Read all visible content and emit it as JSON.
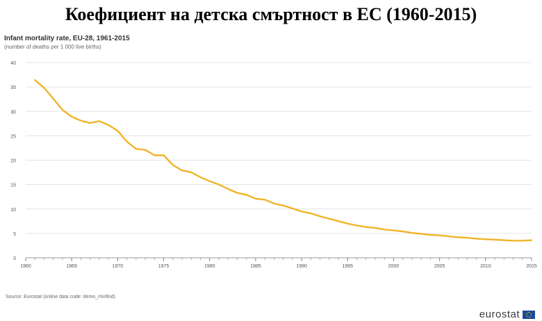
{
  "header": {
    "title": "Коефициент на детска смъртност в ЕС (1960-2015)"
  },
  "chart_data": {
    "type": "line",
    "title": "Infant mortality rate, EU-28, 1961-2015",
    "subtitle": "(number of deaths per 1 000 live births)",
    "xlabel": "",
    "ylabel": "",
    "xlim": [
      1960,
      2015
    ],
    "ylim": [
      0,
      40
    ],
    "x_ticks": [
      1960,
      1965,
      1970,
      1975,
      1980,
      1985,
      1990,
      1995,
      2000,
      2005,
      2010,
      2015
    ],
    "y_ticks": [
      0,
      5,
      10,
      15,
      20,
      25,
      30,
      35,
      40
    ],
    "grid": true,
    "color": "#f0b429",
    "series": [
      {
        "x": [
          1961,
          1962,
          1963,
          1964,
          1965,
          1966,
          1967,
          1968,
          1969,
          1970,
          1971,
          1972,
          1973,
          1974,
          1975,
          1976,
          1977,
          1978,
          1979,
          1980,
          1981,
          1982,
          1983,
          1984,
          1985,
          1986,
          1987,
          1988,
          1989,
          1990,
          1991,
          1992,
          1993,
          1994,
          1995,
          1996,
          1997,
          1998,
          1999,
          2000,
          2001,
          2002,
          2003,
          2004,
          2005,
          2006,
          2007,
          2008,
          2009,
          2010,
          2011,
          2012,
          2013,
          2014,
          2015
        ],
        "values": [
          36.4,
          34.8,
          32.6,
          30.3,
          28.9,
          28.1,
          27.6,
          28.0,
          27.2,
          26.0,
          23.8,
          22.3,
          22.1,
          21.0,
          21.0,
          19.0,
          17.9,
          17.5,
          16.5,
          15.7,
          15.0,
          14.1,
          13.3,
          12.9,
          12.1,
          11.9,
          11.1,
          10.7,
          10.1,
          9.5,
          9.1,
          8.5,
          8.0,
          7.5,
          7.0,
          6.6,
          6.3,
          6.1,
          5.8,
          5.6,
          5.4,
          5.1,
          4.9,
          4.7,
          4.6,
          4.4,
          4.2,
          4.1,
          3.9,
          3.8,
          3.7,
          3.6,
          3.5,
          3.5,
          3.6
        ]
      }
    ]
  },
  "footer": {
    "source": "Source: Eurostat (online data code: demo_minfind)",
    "logo": "eurostat",
    "logo_icon": "eu-flag-icon"
  }
}
